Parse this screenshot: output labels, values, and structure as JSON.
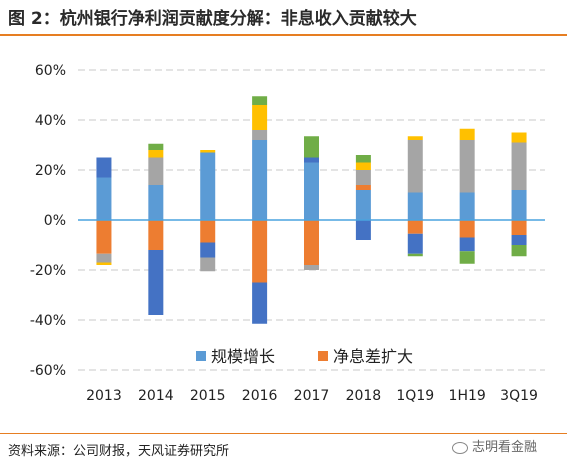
{
  "header": {
    "title": "图 2：杭州银行净利润贡献度分解：非息收入贡献较大"
  },
  "footer": {
    "source": "资料来源：公司财报，天风证券研究所",
    "watermark": "志明看金融"
  },
  "chart_data": {
    "type": "bar",
    "stacked": true,
    "categories": [
      "2013",
      "2014",
      "2015",
      "2016",
      "2017",
      "2018",
      "1Q19",
      "1H19",
      "3Q19"
    ],
    "y_ticks": [
      "60%",
      "40%",
      "20%",
      "0%",
      "-20%",
      "-40%",
      "-60%"
    ],
    "ylim": [
      -0.6,
      0.6
    ],
    "grid": true,
    "legend_position": "bottom",
    "series": [
      {
        "name": "规模增长",
        "color": "#5b9bd5",
        "values": [
          0.17,
          0.14,
          0.27,
          0.32,
          0.23,
          0.12,
          0.11,
          0.11,
          0.12
        ]
      },
      {
        "name": "净息差扩大",
        "color": "#ed7d31",
        "values": [
          -0.135,
          -0.12,
          -0.09,
          -0.25,
          -0.18,
          0.02,
          -0.055,
          -0.07,
          -0.06
        ]
      },
      {
        "color": "#4472c4",
        "values": [
          0.08,
          -0.26,
          -0.06,
          -0.165,
          0.02,
          -0.08,
          -0.08,
          -0.055,
          -0.04
        ]
      },
      {
        "color": "#a5a5a5",
        "values": [
          -0.035,
          0.11,
          -0.055,
          0.04,
          -0.02,
          0.06,
          0.21,
          0.21,
          0.19
        ]
      },
      {
        "color": "#ffc000",
        "values": [
          -0.01,
          0.03,
          0.01,
          0.1,
          0.0,
          0.03,
          0.015,
          0.045,
          0.04
        ]
      },
      {
        "color": "#70ad47",
        "values": [
          0.0,
          0.025,
          0.0,
          0.035,
          0.085,
          0.03,
          -0.01,
          -0.05,
          -0.045
        ]
      }
    ]
  }
}
